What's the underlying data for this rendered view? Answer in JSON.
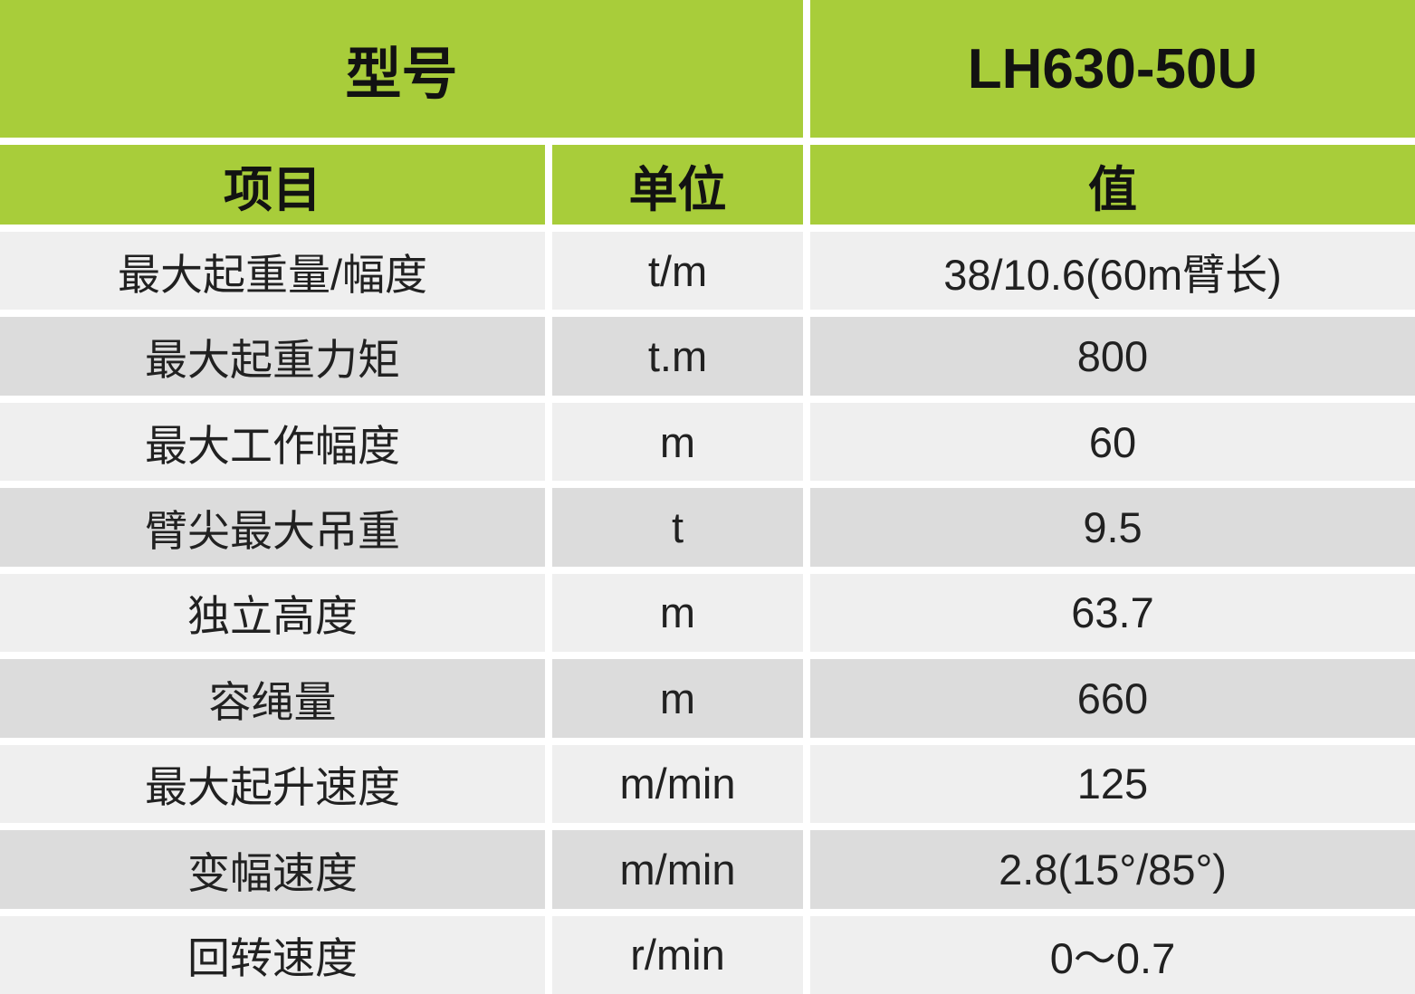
{
  "table": {
    "model_header": {
      "label": "型号",
      "value": "LH630-50U"
    },
    "columns": {
      "item": "项目",
      "unit": "单位",
      "value": "值"
    },
    "rows": [
      {
        "item": "最大起重量/幅度",
        "unit": "t/m",
        "value": "38/10.6(60m臂长)"
      },
      {
        "item": "最大起重力矩",
        "unit": "t.m",
        "value": "800"
      },
      {
        "item": "最大工作幅度",
        "unit": "m",
        "value": "60"
      },
      {
        "item": "臂尖最大吊重",
        "unit": "t",
        "value": "9.5"
      },
      {
        "item": "独立高度",
        "unit": "m",
        "value": "63.7"
      },
      {
        "item": "容绳量",
        "unit": "m",
        "value": "660"
      },
      {
        "item": "最大起升速度",
        "unit": "m/min",
        "value": "125"
      },
      {
        "item": "变幅速度",
        "unit": "m/min",
        "value": "2.8(15°/85°)"
      },
      {
        "item": "回转速度",
        "unit": "r/min",
        "value": "0～0.7"
      }
    ]
  },
  "colors": {
    "header_green": "#a8cd3a",
    "row_light": "#efefef",
    "row_dark": "#dcdcdc",
    "separator_white": "#ffffff",
    "text_dark": "#212121"
  }
}
